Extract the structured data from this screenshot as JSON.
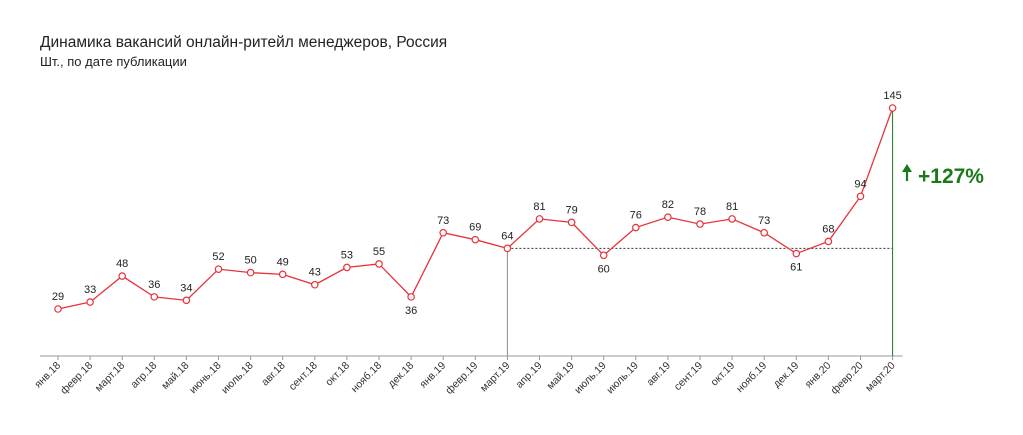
{
  "title": "Динамика вакансий онлайн-ритейл менеджеров, Россия",
  "subtitle": "Шт., по дате публикации",
  "colors": {
    "line": "#e8323c",
    "marker_fill": "#ffffff",
    "growth": "#1a7a1a",
    "axis": "#999999",
    "reference": "#333333"
  },
  "chart_data": {
    "type": "line",
    "title": "Динамика вакансий онлайн-ритейл менеджеров, Россия",
    "subtitle": "Шт., по дате публикации",
    "xlabel": "",
    "ylabel": "",
    "ylim": [
      0,
      160
    ],
    "grid": false,
    "legend": "none",
    "categories": [
      "янв.18",
      "февр.18",
      "март.18",
      "апр.18",
      "май.18",
      "июнь.18",
      "июль.18",
      "авг.18",
      "сент.18",
      "окт.18",
      "нояб.18",
      "дек.18",
      "янв.19",
      "февр.19",
      "март.19",
      "апр.19",
      "май.19",
      "июль.19",
      "июль.19",
      "авг.19",
      "сент.19",
      "окт.19",
      "нояб.19",
      "дек.19",
      "янв.20",
      "февр.20",
      "март.20"
    ],
    "series": [
      {
        "values": [
          29,
          33,
          48,
          36,
          34,
          52,
          50,
          49,
          43,
          53,
          55,
          36,
          73,
          69,
          64,
          81,
          79,
          60,
          76,
          82,
          78,
          81,
          73,
          61,
          68,
          94,
          145
        ]
      }
    ],
    "annotations": {
      "growth_label": "+127%",
      "reference_from": "март.19",
      "reference_to": "март.20"
    }
  }
}
